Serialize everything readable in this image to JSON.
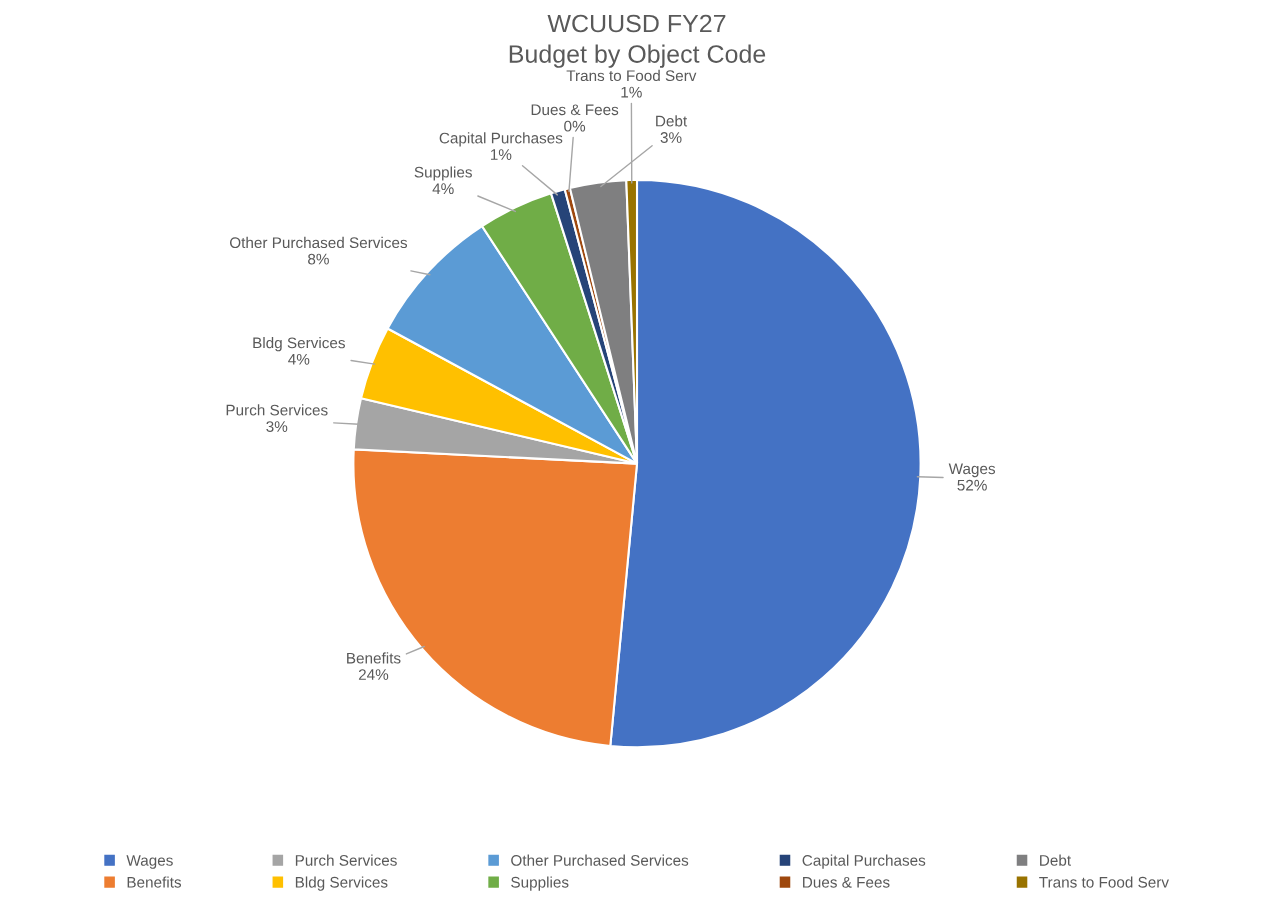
{
  "chart_data": {
    "type": "pie",
    "title": "WCUUSD FY27\nBudget by Object Code",
    "categories": [
      "Wages",
      "Benefits",
      "Purch Services",
      "Bldg Services",
      "Other Purchased Services",
      "Supplies",
      "Capital Purchases",
      "Dues & Fees",
      "Debt",
      "Trans to Food Serv"
    ],
    "values": [
      51.5,
      24.3,
      2.9,
      4.2,
      7.9,
      4.3,
      0.8,
      0.3,
      3.2,
      0.6
    ],
    "value_labels": [
      "52%",
      "24%",
      "3%",
      "4%",
      "8%",
      "4%",
      "1%",
      "0%",
      "3%",
      "1%"
    ],
    "colors": [
      "#4472c4",
      "#ed7d31",
      "#a5a5a5",
      "#ffc000",
      "#5b9bd5",
      "#70ad47",
      "#264478",
      "#9e480e",
      "#7f7f80",
      "#997300"
    ],
    "legend": "bottom"
  }
}
